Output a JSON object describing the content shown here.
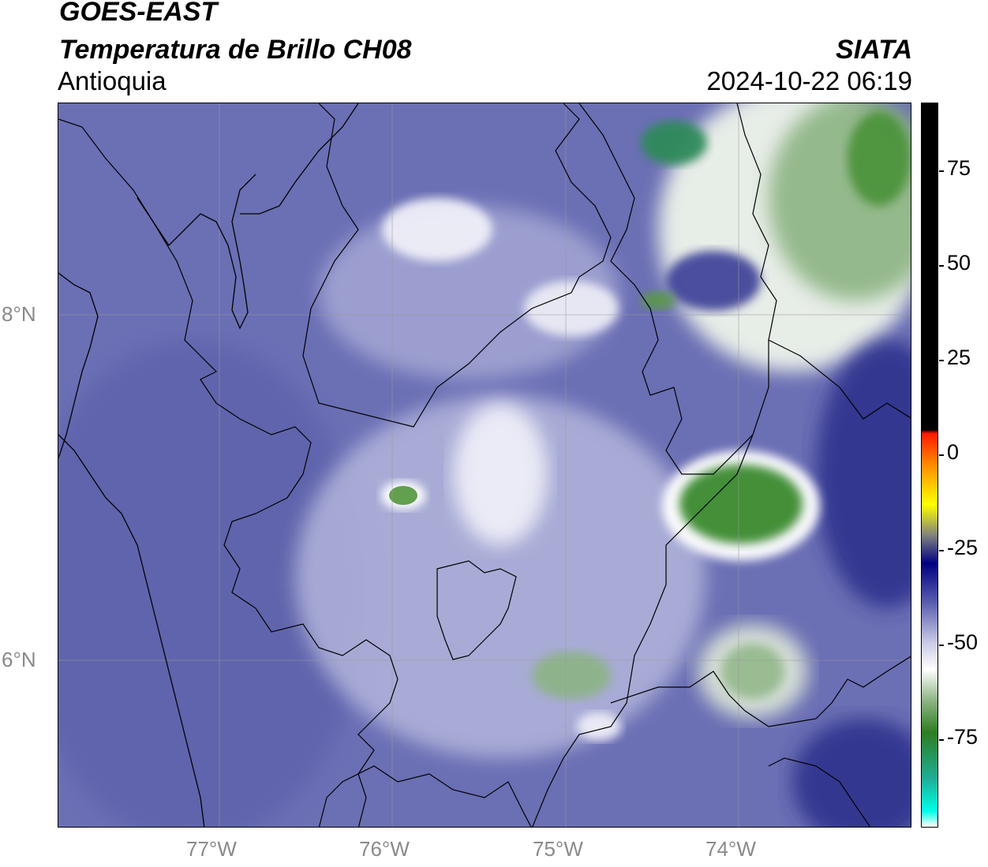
{
  "header": {
    "satellite": "GOES-EAST",
    "product": "Temperatura de Brillo CH08",
    "brand": "SIATA",
    "region": "Antioquia",
    "datetime": "2024-10-22 06:19"
  },
  "map": {
    "lat_ticks": [
      "8°N",
      "6°N"
    ],
    "lon_ticks": [
      "77°W",
      "76°W",
      "75°W",
      "74°W"
    ],
    "colors": {
      "background": "#6b6fb4",
      "border": "#000000",
      "gridline": "#9a9a9a"
    }
  },
  "colorbar": {
    "ticks": [
      "75",
      "50",
      "25",
      "0",
      "-25",
      "-50",
      "-75"
    ],
    "range": [
      -92,
      92
    ],
    "stops": [
      {
        "value": 92,
        "color": "#000000"
      },
      {
        "value": 9,
        "color": "#000000"
      },
      {
        "value": 8,
        "color": "#ff1a00"
      },
      {
        "value": 0,
        "color": "#ff8c00"
      },
      {
        "value": -10,
        "color": "#ffff00"
      },
      {
        "value": -18,
        "color": "#7f7f7f"
      },
      {
        "value": -25,
        "color": "#000080"
      },
      {
        "value": -35,
        "color": "#5a5eae"
      },
      {
        "value": -45,
        "color": "#c8c9e6"
      },
      {
        "value": -52,
        "color": "#ffffff"
      },
      {
        "value": -60,
        "color": "#8cb483"
      },
      {
        "value": -68,
        "color": "#2e7d22"
      },
      {
        "value": -80,
        "color": "#1eaf9a"
      },
      {
        "value": -88,
        "color": "#00ffe6"
      },
      {
        "value": -92,
        "color": "#ffffff"
      }
    ]
  }
}
